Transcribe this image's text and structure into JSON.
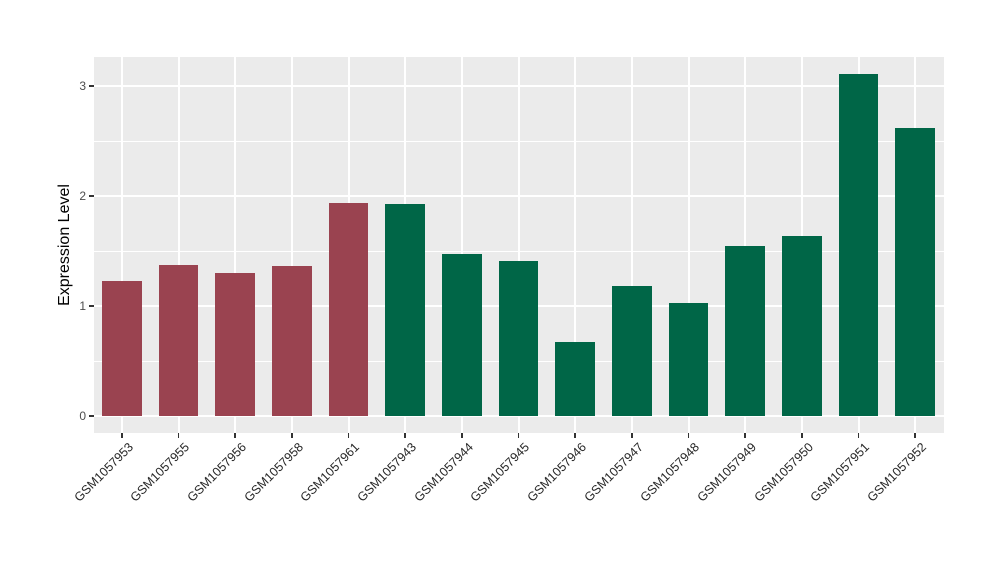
{
  "chart_data": {
    "type": "bar",
    "title": "",
    "xlabel": "",
    "ylabel": "Expression Level",
    "categories": [
      "GSM1057953",
      "GSM1057955",
      "GSM1057956",
      "GSM1057958",
      "GSM1057961",
      "GSM1057943",
      "GSM1057944",
      "GSM1057945",
      "GSM1057946",
      "GSM1057947",
      "GSM1057948",
      "GSM1057949",
      "GSM1057950",
      "GSM1057951",
      "GSM1057952"
    ],
    "values": [
      1.23,
      1.37,
      1.3,
      1.36,
      1.94,
      1.93,
      1.47,
      1.41,
      0.67,
      1.18,
      1.03,
      1.55,
      1.64,
      3.11,
      2.62
    ],
    "bar_groups": [
      "A",
      "A",
      "A",
      "A",
      "A",
      "B",
      "B",
      "B",
      "B",
      "B",
      "B",
      "B",
      "B",
      "B",
      "B"
    ],
    "group_colors": {
      "A": "#9A4350",
      "B": "#006647"
    },
    "y_ticks": [
      0,
      1,
      2,
      3
    ],
    "y_minor_gridlines": [
      0.5,
      1.5,
      2.5
    ],
    "ylim": [
      -0.16,
      3.27
    ],
    "bar_width_fraction": 0.7,
    "grid": true,
    "legend": "none",
    "panel_bg": "#EBEBEB",
    "grid_color": "#FFFFFF",
    "axis_text_color": "#4D4D4D",
    "axis_title_color": "#000000",
    "tick_color": "#333333"
  }
}
